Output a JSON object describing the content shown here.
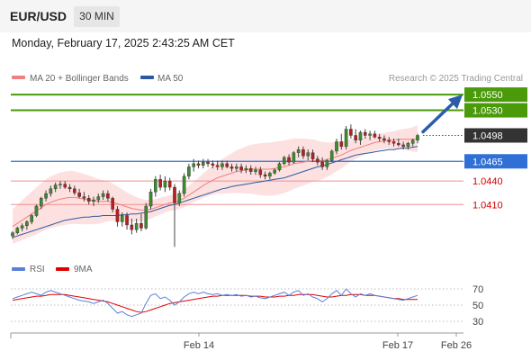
{
  "header": {
    "symbol": "EUR/USD",
    "timeframe": "30 MIN",
    "datetime": "Monday, February 17, 2025 2:43:25 AM CET"
  },
  "legend": {
    "ma20_label": "MA 20 + Bollinger Bands",
    "ma50_label": "MA 50",
    "credit": "Research © 2025 Trading Central",
    "ma20_color": "#f08080",
    "ma50_color": "#2c5aa0"
  },
  "osc_legend": {
    "rsi_label": "RSI",
    "ma9_label": "9MA",
    "rsi_color": "#5a80d8",
    "ma9_color": "#e00000"
  },
  "chart_data": {
    "type": "candlestick",
    "price_range": [
      1.0345,
      1.0565
    ],
    "levels": [
      {
        "value": 1.055,
        "label": "1.0550",
        "kind": "target",
        "color": "#4a9a0a"
      },
      {
        "value": 1.053,
        "label": "1.0530",
        "kind": "target",
        "color": "#4a9a0a"
      },
      {
        "value": 1.0498,
        "label": "1.0498",
        "kind": "current",
        "color": "#333333"
      },
      {
        "value": 1.0465,
        "label": "1.0465",
        "kind": "pivot",
        "color": "#2f6fd6"
      },
      {
        "value": 1.044,
        "label": "1.0440",
        "kind": "support",
        "color": "#d00000"
      },
      {
        "value": 1.041,
        "label": "1.0410",
        "kind": "support",
        "color": "#d00000"
      }
    ],
    "x_ticks": [
      "Feb 14",
      "Feb 17",
      "Feb 26"
    ],
    "candles": [
      [
        1.037,
        1.0376,
        1.0366,
        1.0374
      ],
      [
        1.0374,
        1.0382,
        1.0372,
        1.038
      ],
      [
        1.038,
        1.0386,
        1.0376,
        1.0383
      ],
      [
        1.0383,
        1.039,
        1.0378,
        1.0388
      ],
      [
        1.0388,
        1.0398,
        1.0385,
        1.0396
      ],
      [
        1.0396,
        1.041,
        1.0394,
        1.0408
      ],
      [
        1.0408,
        1.042,
        1.0404,
        1.0418
      ],
      [
        1.0418,
        1.0428,
        1.0414,
        1.0424
      ],
      [
        1.0424,
        1.0434,
        1.042,
        1.043
      ],
      [
        1.043,
        1.0438,
        1.0426,
        1.0435
      ],
      [
        1.0435,
        1.044,
        1.043,
        1.0436
      ],
      [
        1.0436,
        1.044,
        1.043,
        1.0432
      ],
      [
        1.0432,
        1.0436,
        1.0426,
        1.043
      ],
      [
        1.043,
        1.0434,
        1.0422,
        1.0425
      ],
      [
        1.0425,
        1.043,
        1.0418,
        1.042
      ],
      [
        1.042,
        1.0426,
        1.0414,
        1.0418
      ],
      [
        1.0418,
        1.0422,
        1.041,
        1.0414
      ],
      [
        1.0414,
        1.042,
        1.0408,
        1.0416
      ],
      [
        1.0416,
        1.0424,
        1.0412,
        1.042
      ],
      [
        1.042,
        1.0428,
        1.0416,
        1.0424
      ],
      [
        1.0424,
        1.0428,
        1.0414,
        1.0418
      ],
      [
        1.0418,
        1.042,
        1.04,
        1.0404
      ],
      [
        1.0404,
        1.0408,
        1.0382,
        1.0388
      ],
      [
        1.0388,
        1.04,
        1.0382,
        1.0396
      ],
      [
        1.0396,
        1.04,
        1.0378,
        1.0384
      ],
      [
        1.0384,
        1.0392,
        1.0372,
        1.0378
      ],
      [
        1.0378,
        1.0392,
        1.0374,
        1.0386
      ],
      [
        1.0386,
        1.0398,
        1.0376,
        1.038
      ],
      [
        1.038,
        1.0412,
        1.0378,
        1.0408
      ],
      [
        1.0408,
        1.043,
        1.0404,
        1.0426
      ],
      [
        1.0426,
        1.0446,
        1.042,
        1.0442
      ],
      [
        1.0442,
        1.0448,
        1.0428,
        1.0432
      ],
      [
        1.0432,
        1.0446,
        1.0426,
        1.044
      ],
      [
        1.044,
        1.0444,
        1.0428,
        1.0432
      ],
      [
        1.0432,
        1.0436,
        1.0356,
        1.0412
      ],
      [
        1.0412,
        1.0428,
        1.0408,
        1.0424
      ],
      [
        1.0424,
        1.045,
        1.042,
        1.0446
      ],
      [
        1.0446,
        1.0462,
        1.0442,
        1.0458
      ],
      [
        1.0458,
        1.0468,
        1.0452,
        1.0462
      ],
      [
        1.0462,
        1.0466,
        1.0456,
        1.046
      ],
      [
        1.046,
        1.0468,
        1.0456,
        1.0464
      ],
      [
        1.0464,
        1.0468,
        1.0458,
        1.0462
      ],
      [
        1.0462,
        1.0466,
        1.0456,
        1.046
      ],
      [
        1.046,
        1.0466,
        1.0454,
        1.0458
      ],
      [
        1.0458,
        1.0466,
        1.0454,
        1.0462
      ],
      [
        1.0462,
        1.0466,
        1.0456,
        1.0458
      ],
      [
        1.0458,
        1.0462,
        1.0452,
        1.0456
      ],
      [
        1.0456,
        1.0462,
        1.0452,
        1.0458
      ],
      [
        1.0458,
        1.0462,
        1.045,
        1.0454
      ],
      [
        1.0454,
        1.046,
        1.045,
        1.0456
      ],
      [
        1.0456,
        1.046,
        1.0448,
        1.0452
      ],
      [
        1.0452,
        1.0458,
        1.0448,
        1.0454
      ],
      [
        1.0454,
        1.0458,
        1.0444,
        1.0448
      ],
      [
        1.0448,
        1.0452,
        1.0442,
        1.0446
      ],
      [
        1.0446,
        1.0452,
        1.0442,
        1.045
      ],
      [
        1.045,
        1.0456,
        1.0448,
        1.0454
      ],
      [
        1.0454,
        1.0464,
        1.0452,
        1.0462
      ],
      [
        1.0462,
        1.0472,
        1.046,
        1.047
      ],
      [
        1.047,
        1.0474,
        1.046,
        1.0464
      ],
      [
        1.0464,
        1.0478,
        1.0462,
        1.0476
      ],
      [
        1.0476,
        1.0484,
        1.047,
        1.048
      ],
      [
        1.048,
        1.0484,
        1.0468,
        1.0472
      ],
      [
        1.0472,
        1.048,
        1.0466,
        1.0476
      ],
      [
        1.0476,
        1.048,
        1.0464,
        1.0468
      ],
      [
        1.0468,
        1.0472,
        1.046,
        1.0464
      ],
      [
        1.0464,
        1.047,
        1.0454,
        1.0458
      ],
      [
        1.0458,
        1.0468,
        1.0454,
        1.0466
      ],
      [
        1.0466,
        1.048,
        1.0464,
        1.0478
      ],
      [
        1.0478,
        1.0494,
        1.0474,
        1.049
      ],
      [
        1.049,
        1.05,
        1.048,
        1.0484
      ],
      [
        1.0484,
        1.051,
        1.048,
        1.0506
      ],
      [
        1.0506,
        1.0512,
        1.0494,
        1.0498
      ],
      [
        1.0498,
        1.0506,
        1.0488,
        1.0492
      ],
      [
        1.0492,
        1.0504,
        1.0486,
        1.0502
      ],
      [
        1.0502,
        1.0506,
        1.0494,
        1.0498
      ],
      [
        1.0498,
        1.0504,
        1.0492,
        1.05
      ],
      [
        1.05,
        1.0504,
        1.0494,
        1.0496
      ],
      [
        1.0496,
        1.05,
        1.049,
        1.0494
      ],
      [
        1.0494,
        1.0498,
        1.0488,
        1.0492
      ],
      [
        1.0492,
        1.0496,
        1.0486,
        1.049
      ],
      [
        1.049,
        1.0494,
        1.0484,
        1.0488
      ],
      [
        1.0488,
        1.0494,
        1.0484,
        1.0486
      ],
      [
        1.0486,
        1.049,
        1.048,
        1.0484
      ],
      [
        1.0484,
        1.049,
        1.048,
        1.0488
      ],
      [
        1.0488,
        1.0494,
        1.0484,
        1.0492
      ],
      [
        1.0492,
        1.05,
        1.0488,
        1.0498
      ]
    ],
    "ma20": [
      1.0382,
      1.0386,
      1.039,
      1.0394,
      1.0398,
      1.0402,
      1.0406,
      1.041,
      1.0413,
      1.0415,
      1.0417,
      1.0418,
      1.0419,
      1.0419,
      1.0418,
      1.0417,
      1.0416,
      1.0415,
      1.0414,
      1.0414,
      1.0414,
      1.0413,
      1.0411,
      1.0409,
      1.0407,
      1.0405,
      1.0404,
      1.0403,
      1.0403,
      1.0404,
      1.0406,
      1.0408,
      1.041,
      1.0412,
      1.0413,
      1.0415,
      1.0418,
      1.0422,
      1.0426,
      1.043,
      1.0434,
      1.0438,
      1.0441,
      1.0444,
      1.0446,
      1.0448,
      1.045,
      1.0452,
      1.0453,
      1.0454,
      1.0455,
      1.0455,
      1.0455,
      1.0455,
      1.0455,
      1.0456,
      1.0457,
      1.0458,
      1.046,
      1.0462,
      1.0463,
      1.0464,
      1.0465,
      1.0466,
      1.0466,
      1.0466,
      1.0467,
      1.0469,
      1.0471,
      1.0473,
      1.0476,
      1.0479,
      1.0481,
      1.0483,
      1.0485,
      1.0487,
      1.0489,
      1.049,
      1.0491,
      1.0492,
      1.0492,
      1.0493,
      1.0493,
      1.0493,
      1.0493,
      1.0494
    ],
    "ma50": [
      1.0368,
      1.037,
      1.0372,
      1.0374,
      1.0376,
      1.0378,
      1.038,
      1.0382,
      1.0384,
      1.0386,
      1.0388,
      1.039,
      1.0391,
      1.0392,
      1.0393,
      1.0394,
      1.0394,
      1.0395,
      1.0395,
      1.0396,
      1.0396,
      1.0396,
      1.0396,
      1.0397,
      1.0397,
      1.0398,
      1.0398,
      1.0399,
      1.04,
      1.0401,
      1.0403,
      1.0405,
      1.0407,
      1.0409,
      1.041,
      1.0412,
      1.0414,
      1.0416,
      1.0418,
      1.042,
      1.0422,
      1.0424,
      1.0426,
      1.0428,
      1.043,
      1.0431,
      1.0433,
      1.0434,
      1.0435,
      1.0436,
      1.0437,
      1.0438,
      1.0439,
      1.044,
      1.0441,
      1.0442,
      1.0443,
      1.0444,
      1.0446,
      1.0448,
      1.045,
      1.0452,
      1.0454,
      1.0456,
      1.0458,
      1.0459,
      1.0461,
      1.0463,
      1.0465,
      1.0467,
      1.0469,
      1.0471,
      1.0473,
      1.0474,
      1.0475,
      1.0476,
      1.0477,
      1.0478,
      1.0479,
      1.048,
      1.048,
      1.0481,
      1.0482,
      1.0482,
      1.0483,
      1.0484
    ],
    "rsi": {
      "range": [
        20,
        80
      ],
      "ticks": [
        70,
        50,
        30
      ],
      "rsi": [
        58,
        60,
        62,
        64,
        66,
        64,
        62,
        66,
        68,
        66,
        64,
        62,
        60,
        58,
        56,
        55,
        54,
        52,
        54,
        56,
        52,
        46,
        40,
        42,
        38,
        36,
        38,
        40,
        52,
        62,
        64,
        58,
        60,
        56,
        50,
        54,
        60,
        64,
        66,
        64,
        66,
        64,
        63,
        64,
        62,
        63,
        62,
        63,
        61,
        62,
        60,
        61,
        59,
        58,
        60,
        62,
        64,
        66,
        62,
        66,
        68,
        62,
        64,
        60,
        58,
        54,
        58,
        64,
        68,
        62,
        70,
        64,
        60,
        64,
        62,
        64,
        62,
        61,
        60,
        59,
        58,
        57,
        56,
        58,
        60,
        62
      ],
      "ma9": [
        56,
        57,
        58,
        59,
        60,
        61,
        61,
        62,
        63,
        63,
        63,
        63,
        62,
        61,
        60,
        59,
        58,
        57,
        56,
        55,
        54,
        52,
        50,
        48,
        46,
        44,
        42,
        41,
        42,
        44,
        46,
        48,
        50,
        52,
        53,
        54,
        55,
        56,
        57,
        58,
        59,
        60,
        61,
        61,
        62,
        62,
        62,
        62,
        62,
        62,
        61,
        61,
        61,
        60,
        60,
        60,
        61,
        61,
        62,
        62,
        63,
        63,
        63,
        63,
        62,
        61,
        60,
        60,
        61,
        62,
        62,
        63,
        63,
        63,
        62,
        62,
        62,
        61,
        60,
        59,
        58,
        58,
        57,
        57,
        57,
        57
      ]
    }
  }
}
